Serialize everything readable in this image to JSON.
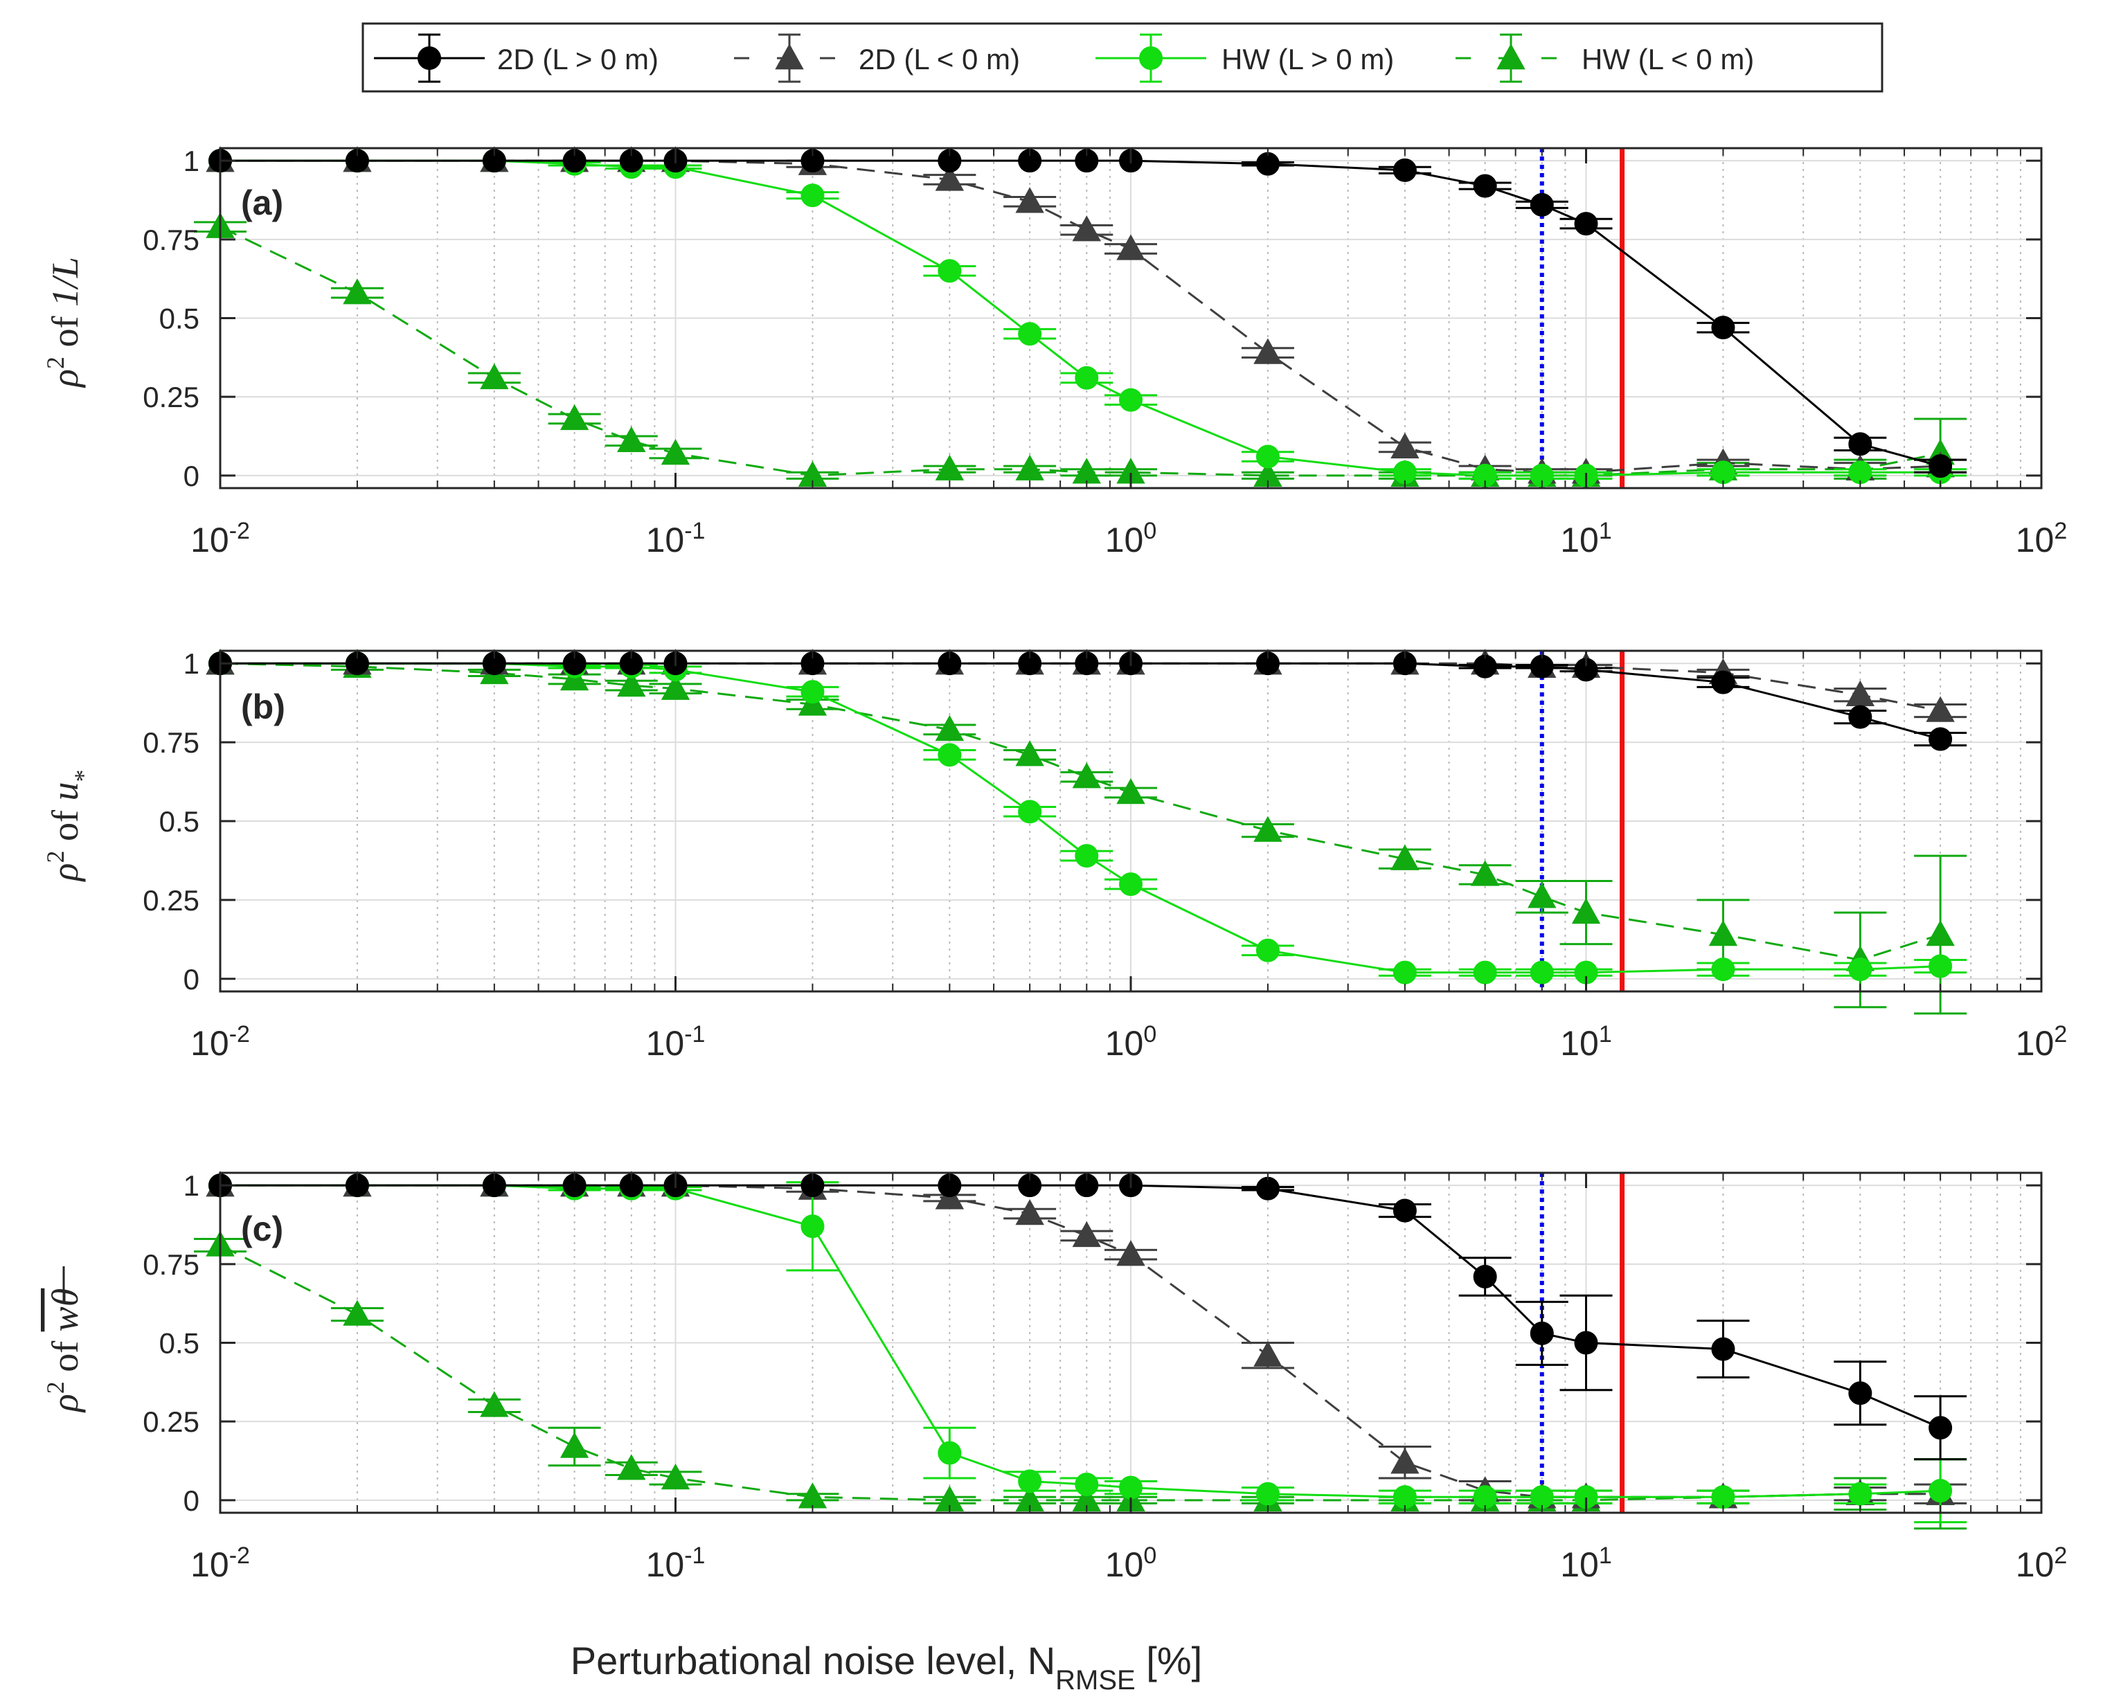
{
  "chart_data": {
    "type": "line",
    "x_scale": "log",
    "xlim": [
      0.01,
      100
    ],
    "ylim": [
      -0.04,
      1.04
    ],
    "grid": true,
    "legend_position": "top-center",
    "x_tick_labels": [
      {
        "base": "10",
        "exp": "-2"
      },
      {
        "base": "10",
        "exp": "-1"
      },
      {
        "base": "10",
        "exp": "0"
      },
      {
        "base": "10",
        "exp": "1"
      },
      {
        "base": "10",
        "exp": "2"
      }
    ],
    "y_tick_values": [
      0,
      0.25,
      0.5,
      0.75,
      1
    ],
    "y_tick_labels": [
      "0",
      "0.25",
      "0.5",
      "0.75",
      "1"
    ],
    "xlabel": {
      "main": "Perturbational noise level, N",
      "sub": "RMSE",
      "end": " [%]"
    },
    "reference_lines": [
      {
        "name": "blue-dotted-line",
        "x": 8,
        "color": "#0000ee",
        "style": "dotted"
      },
      {
        "name": "red-solid-line",
        "x": 12,
        "color": "#ee1111",
        "style": "solid"
      }
    ],
    "x": [
      0.01,
      0.02,
      0.04,
      0.06,
      0.08,
      0.1,
      0.2,
      0.4,
      0.6,
      0.8,
      1,
      2,
      4,
      6,
      8,
      10,
      20,
      40,
      60
    ],
    "series": [
      {
        "name": "2D (L > 0 m)",
        "color": "#000000",
        "marker": "circle",
        "dash": "solid"
      },
      {
        "name": "2D (L < 0 m)",
        "color": "#3f3f3f",
        "marker": "triangle",
        "dash": "dashed"
      },
      {
        "name": "HW (L > 0 m)",
        "color": "#11dd11",
        "marker": "circle",
        "dash": "solid"
      },
      {
        "name": "HW (L < 0 m)",
        "color": "#11aa11",
        "marker": "triangle",
        "dash": "dashed"
      }
    ],
    "panels": [
      {
        "label": "(a)",
        "ylabel": {
          "rho": "ρ",
          "sup": "2",
          "of": " of ",
          "quantity": "1/L"
        },
        "values": [
          [
            1,
            1,
            1,
            1,
            1,
            1,
            1,
            1,
            1,
            1,
            1,
            0.99,
            0.97,
            0.92,
            0.86,
            0.8,
            0.47,
            0.1,
            0.03
          ],
          [
            1,
            1,
            1,
            1,
            1,
            1,
            0.99,
            0.94,
            0.87,
            0.78,
            0.72,
            0.39,
            0.09,
            0.02,
            0.01,
            0.01,
            0.04,
            0.02,
            0.03
          ],
          [
            1,
            1,
            1,
            0.99,
            0.98,
            0.98,
            0.89,
            0.65,
            0.45,
            0.31,
            0.24,
            0.06,
            0.01,
            0,
            0,
            0,
            0.01,
            0.01,
            0.01
          ],
          [
            0.79,
            0.58,
            0.31,
            0.18,
            0.11,
            0.07,
            0,
            0.02,
            0.02,
            0.01,
            0.01,
            0,
            0,
            0,
            0,
            0,
            0.02,
            0.02,
            0.07
          ]
        ],
        "errors": [
          [
            0,
            0,
            0,
            0,
            0,
            0,
            0,
            0,
            0,
            0,
            0,
            0.005,
            0.01,
            0.01,
            0.01,
            0.015,
            0.015,
            0.02,
            0.02
          ],
          [
            0,
            0,
            0,
            0,
            0,
            0,
            0.01,
            0.015,
            0.015,
            0.015,
            0.015,
            0.015,
            0.015,
            0.01,
            0.01,
            0.01,
            0.01,
            0.02,
            0.02
          ],
          [
            0,
            0,
            0,
            0.005,
            0.005,
            0.005,
            0.01,
            0.015,
            0.015,
            0.015,
            0.015,
            0.015,
            0.01,
            0.01,
            0.01,
            0.01,
            0.01,
            0.01,
            0.01
          ],
          [
            0.015,
            0.015,
            0.015,
            0.015,
            0.015,
            0.015,
            0.01,
            0.01,
            0.01,
            0.01,
            0.01,
            0.01,
            0.01,
            0.01,
            0.01,
            0.01,
            0.02,
            0.03,
            0.11
          ]
        ]
      },
      {
        "label": "(b)",
        "ylabel": {
          "rho": "ρ",
          "sup": "2",
          "of": " of ",
          "quantity": "u",
          "quantity_sub": "*"
        },
        "values": [
          [
            1,
            1,
            1,
            1,
            1,
            1,
            1,
            1,
            1,
            1,
            1,
            1,
            1,
            0.99,
            0.99,
            0.98,
            0.94,
            0.83,
            0.76
          ],
          [
            1,
            1,
            1,
            1,
            1,
            1,
            1,
            1,
            1,
            1,
            1,
            1,
            1,
            1,
            0.99,
            0.99,
            0.97,
            0.9,
            0.85
          ],
          [
            1,
            1,
            1,
            0.99,
            0.99,
            0.98,
            0.91,
            0.71,
            0.53,
            0.39,
            0.3,
            0.09,
            0.02,
            0.02,
            0.02,
            0.02,
            0.03,
            0.03,
            0.04
          ],
          [
            1,
            0.99,
            0.97,
            0.95,
            0.93,
            0.92,
            0.87,
            0.79,
            0.71,
            0.64,
            0.59,
            0.47,
            0.38,
            0.33,
            0.26,
            0.21,
            0.14,
            0.06,
            0.14
          ]
        ],
        "errors": [
          [
            0,
            0,
            0,
            0,
            0,
            0,
            0,
            0,
            0,
            0,
            0,
            0,
            0,
            0.005,
            0.005,
            0.005,
            0.015,
            0.02,
            0.02
          ],
          [
            0,
            0,
            0,
            0,
            0,
            0,
            0,
            0,
            0,
            0,
            0,
            0,
            0,
            0,
            0.005,
            0.005,
            0.01,
            0.02,
            0.02
          ],
          [
            0,
            0,
            0,
            0.005,
            0.005,
            0.01,
            0.015,
            0.015,
            0.015,
            0.015,
            0.015,
            0.015,
            0.01,
            0.01,
            0.01,
            0.01,
            0.02,
            0.02,
            0.02
          ],
          [
            0,
            0.01,
            0.01,
            0.015,
            0.015,
            0.015,
            0.015,
            0.015,
            0.015,
            0.015,
            0.015,
            0.02,
            0.03,
            0.03,
            0.05,
            0.1,
            0.11,
            0.15,
            0.25
          ]
        ]
      },
      {
        "label": "(c)",
        "ylabel": {
          "rho": "ρ",
          "sup": "2",
          "of": " of ",
          "quantity": "wθ",
          "overline": true
        },
        "values": [
          [
            1,
            1,
            1,
            1,
            1,
            1,
            1,
            1,
            1,
            1,
            1,
            0.99,
            0.92,
            0.71,
            0.53,
            0.5,
            0.48,
            0.34,
            0.23
          ],
          [
            1,
            1,
            1,
            1,
            1,
            1,
            0.99,
            0.96,
            0.91,
            0.84,
            0.78,
            0.46,
            0.12,
            0.03,
            0.01,
            0.01,
            0.01,
            0.02,
            0.02
          ],
          [
            1,
            1,
            1,
            0.99,
            0.99,
            0.99,
            0.87,
            0.15,
            0.06,
            0.05,
            0.04,
            0.02,
            0.01,
            0.01,
            0.01,
            0.01,
            0.01,
            0.02,
            0.03
          ],
          [
            0.81,
            0.59,
            0.3,
            0.17,
            0.1,
            0.07,
            0.01,
            0,
            0,
            0,
            0,
            0,
            0,
            0,
            0,
            0,
            0.01,
            0.02,
            0.02
          ]
        ],
        "errors": [
          [
            0,
            0,
            0,
            0,
            0,
            0,
            0,
            0,
            0,
            0,
            0,
            0.005,
            0.02,
            0.06,
            0.1,
            0.15,
            0.09,
            0.1,
            0.1
          ],
          [
            0,
            0,
            0,
            0,
            0,
            0,
            0.01,
            0.01,
            0.015,
            0.015,
            0.015,
            0.04,
            0.05,
            0.03,
            0.02,
            0.02,
            0.02,
            0.02,
            0.03
          ],
          [
            0,
            0,
            0,
            0.005,
            0.005,
            0.005,
            0.14,
            0.08,
            0.03,
            0.02,
            0.02,
            0.02,
            0.02,
            0.02,
            0.02,
            0.02,
            0.02,
            0.03,
            0.1
          ],
          [
            0.02,
            0.02,
            0.02,
            0.06,
            0.02,
            0.02,
            0.01,
            0.01,
            0.01,
            0.01,
            0.01,
            0.01,
            0.01,
            0.01,
            0.01,
            0.01,
            0.02,
            0.05,
            0.11
          ]
        ]
      }
    ]
  }
}
